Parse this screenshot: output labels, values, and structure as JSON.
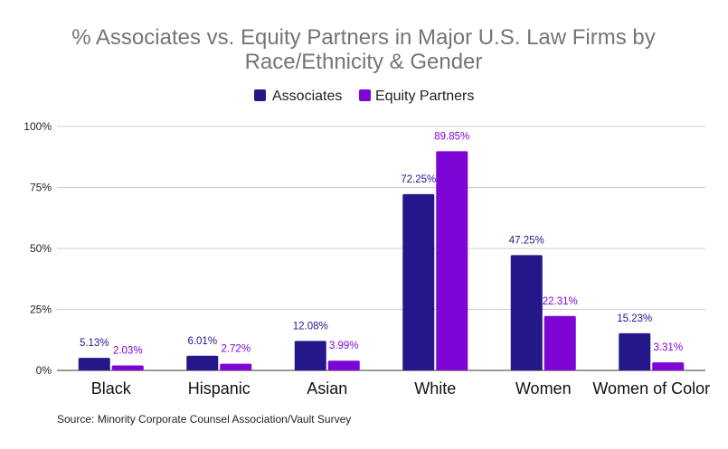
{
  "chart_data": {
    "type": "bar",
    "title_lines": [
      "% Associates vs. Equity Partners in Major U.S. Law Firms by",
      "Race/Ethnicity & Gender"
    ],
    "categories": [
      "Black",
      "Hispanic",
      "Asian",
      "White",
      "Women",
      "Women of Color"
    ],
    "series": [
      {
        "name": "Associates",
        "color": "#23178a",
        "values": [
          5.13,
          6.01,
          12.08,
          72.25,
          47.25,
          15.23
        ],
        "labels": [
          "5.13%",
          "6.01%",
          "12.08%",
          "72.25%",
          "47.25%",
          "15.23%"
        ]
      },
      {
        "name": "Equity Partners",
        "color": "#7d06d7",
        "values": [
          2.03,
          2.72,
          3.99,
          89.85,
          22.31,
          3.31
        ],
        "labels": [
          "2.03%",
          "2.72%",
          "3.99%",
          "89.85%",
          "22.31%",
          "3.31%"
        ]
      }
    ],
    "yticks": [
      "0%",
      "25%",
      "50%",
      "75%",
      "100%"
    ],
    "ylim": [
      0,
      100
    ],
    "grid": true,
    "legend": "top-center",
    "source": "Source: Minority Corporate Counsel Association/Vault Survey"
  }
}
